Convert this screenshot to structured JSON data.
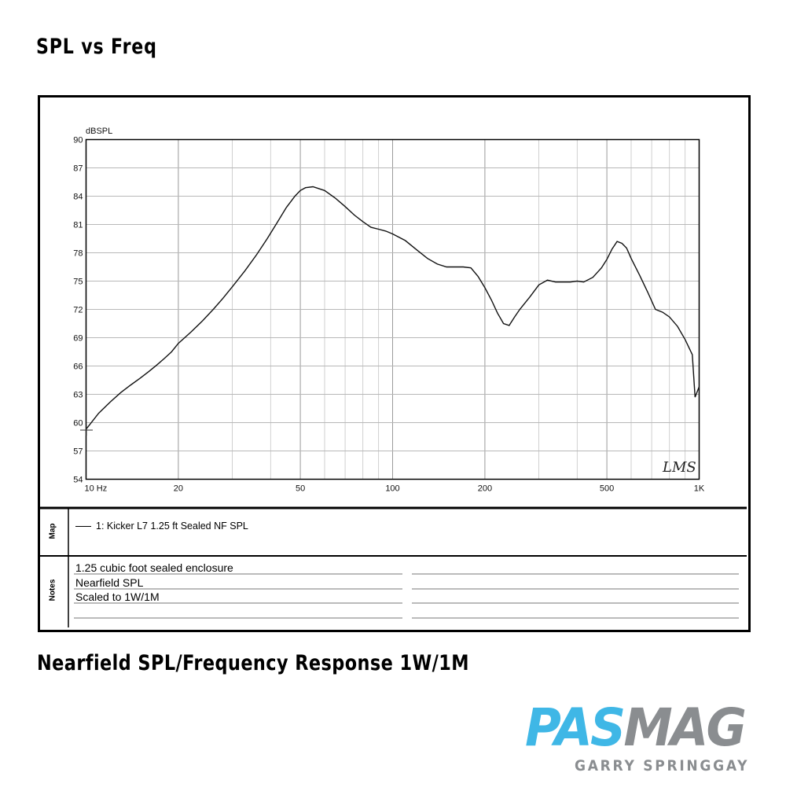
{
  "header": {
    "title": "SPL vs Freq"
  },
  "chart_data": {
    "type": "line",
    "ylabel": "dBSPL",
    "x_scale": "log",
    "xlim": [
      10,
      1000
    ],
    "ylim": [
      54,
      90
    ],
    "x_ticks": [
      10,
      20,
      50,
      100,
      200,
      500,
      1000
    ],
    "x_tick_labels": [
      "10 Hz",
      "20",
      "50",
      "100",
      "200",
      "500",
      "1K"
    ],
    "y_ticks": [
      54,
      57,
      60,
      63,
      66,
      69,
      72,
      75,
      78,
      81,
      84,
      87,
      90
    ],
    "grid": true,
    "series": [
      {
        "name": "1: Kicker L7 1.25 ft Sealed NF SPL",
        "x": [
          10,
          11,
          12,
          13,
          14,
          15,
          16,
          17,
          18,
          19,
          20,
          22,
          24,
          26,
          28,
          30,
          33,
          36,
          39,
          42,
          45,
          48,
          50,
          52,
          55,
          60,
          65,
          70,
          75,
          80,
          85,
          90,
          95,
          100,
          110,
          120,
          130,
          140,
          150,
          160,
          170,
          180,
          190,
          200,
          210,
          220,
          230,
          240,
          250,
          260,
          280,
          300,
          320,
          340,
          360,
          380,
          400,
          420,
          450,
          480,
          500,
          520,
          540,
          560,
          580,
          600,
          640,
          680,
          720,
          760,
          800,
          850,
          900,
          950,
          970,
          1000
        ],
        "y": [
          59.3,
          61.0,
          62.2,
          63.2,
          64.0,
          64.7,
          65.4,
          66.1,
          66.8,
          67.5,
          68.4,
          69.6,
          70.8,
          72.0,
          73.2,
          74.4,
          76.1,
          77.8,
          79.5,
          81.2,
          82.8,
          84.0,
          84.6,
          84.9,
          85.0,
          84.6,
          83.8,
          82.9,
          82.0,
          81.3,
          80.7,
          80.5,
          80.3,
          80.0,
          79.3,
          78.3,
          77.4,
          76.8,
          76.5,
          76.5,
          76.5,
          76.4,
          75.5,
          74.3,
          73.0,
          71.6,
          70.5,
          70.3,
          71.2,
          72.0,
          73.3,
          74.6,
          75.1,
          74.9,
          74.9,
          74.9,
          75.0,
          74.9,
          75.4,
          76.4,
          77.3,
          78.4,
          79.2,
          79.0,
          78.5,
          77.4,
          75.6,
          73.8,
          72.0,
          71.7,
          71.2,
          70.2,
          68.8,
          67.2,
          62.7,
          63.8
        ]
      }
    ]
  },
  "map": {
    "label": "Map",
    "entry": "1: Kicker L7 1.25 ft Sealed NF SPL"
  },
  "notes": {
    "label": "Notes",
    "lines": [
      "1.25 cubic foot sealed enclosure",
      "Nearfield SPL",
      "Scaled to 1W/1M"
    ]
  },
  "watermark": "LMS",
  "caption": "Nearfield SPL/Frequency Response 1W/1M",
  "logo": {
    "part1": "PAS",
    "part2": "MAG",
    "byline": "GARRY SPRINGGAY",
    "part1_color": "#3fb7e6",
    "part2_color": "#8a8d90"
  }
}
